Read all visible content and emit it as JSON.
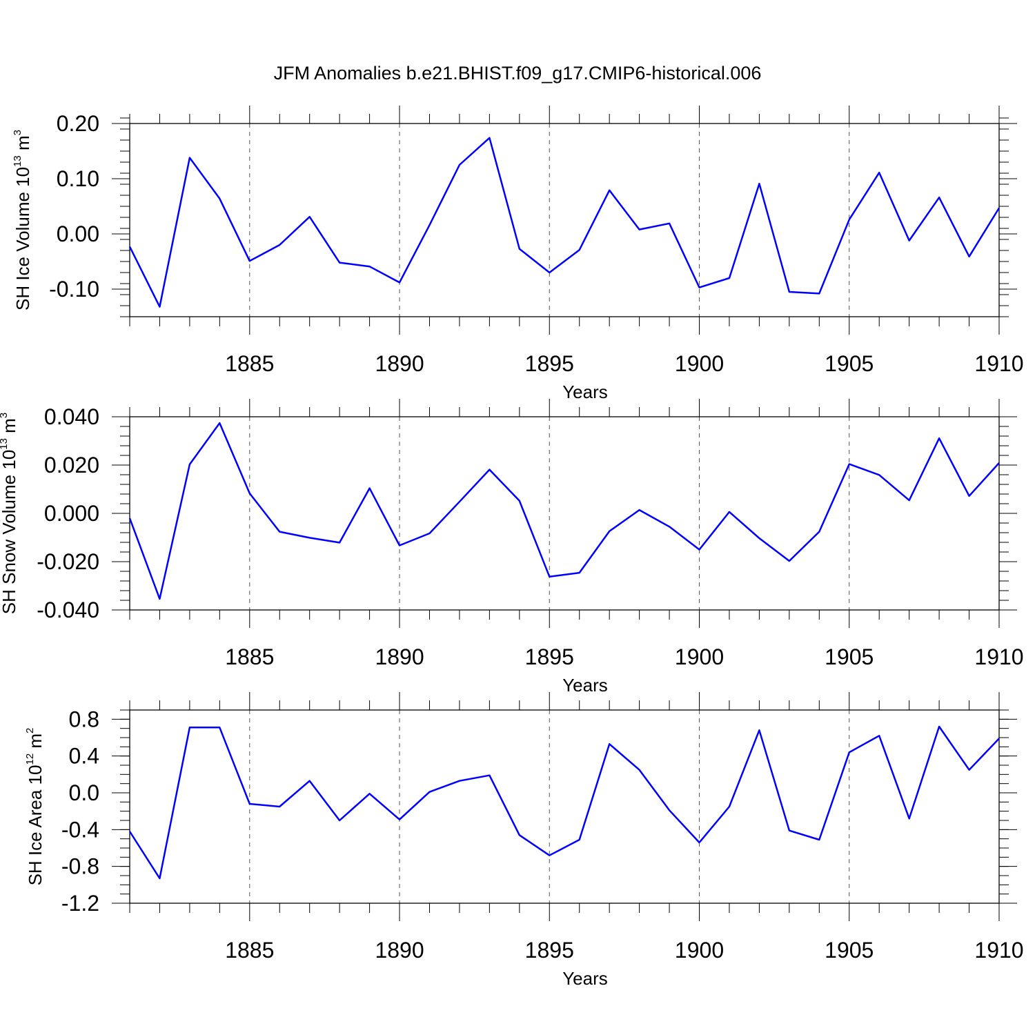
{
  "title": "JFM Anomalies b.e21.BHIST.f09_g17.CMIP6-historical.006",
  "colors": {
    "series": "#0000ff",
    "axis": "#000000",
    "grid": "#555555"
  },
  "chart_data": [
    {
      "type": "line",
      "id": "ice-volume",
      "ylabel": {
        "main": "SH Ice Volume 10",
        "sup": "13",
        "unit": " m",
        "unit_sup": "3"
      },
      "xlabel": "Years",
      "x": [
        1881,
        1882,
        1883,
        1884,
        1885,
        1886,
        1887,
        1888,
        1889,
        1890,
        1891,
        1892,
        1893,
        1894,
        1895,
        1896,
        1897,
        1898,
        1899,
        1900,
        1901,
        1902,
        1903,
        1904,
        1905,
        1906,
        1907,
        1908,
        1909,
        1910
      ],
      "values": [
        -0.023,
        -0.132,
        0.138,
        0.064,
        -0.049,
        -0.02,
        0.031,
        -0.052,
        -0.059,
        -0.088,
        0.016,
        0.125,
        0.174,
        -0.027,
        -0.07,
        -0.029,
        0.079,
        0.008,
        0.019,
        -0.097,
        -0.08,
        0.091,
        -0.105,
        -0.108,
        0.026,
        0.111,
        -0.012,
        0.066,
        -0.041,
        0.047
      ],
      "xlim": [
        1881,
        1910
      ],
      "ylim": [
        -0.15,
        0.2
      ],
      "yticks": [
        -0.1,
        0.0,
        0.1,
        0.2
      ],
      "ytick_labels": [
        "-0.10",
        "0.00",
        "0.10",
        "0.20"
      ],
      "yminor_step": 0.02,
      "xticks": [
        1885,
        1890,
        1895,
        1900,
        1905,
        1910
      ],
      "xtick_labels": [
        "1885",
        "1890",
        "1895",
        "1900",
        "1905",
        "1910"
      ]
    },
    {
      "type": "line",
      "id": "snow-volume",
      "ylabel": {
        "main": "SH Snow Volume 10",
        "sup": "13",
        "unit": " m",
        "unit_sup": "3"
      },
      "xlabel": "Years",
      "x": [
        1881,
        1882,
        1883,
        1884,
        1885,
        1886,
        1887,
        1888,
        1889,
        1890,
        1891,
        1892,
        1893,
        1894,
        1895,
        1896,
        1897,
        1898,
        1899,
        1900,
        1901,
        1902,
        1903,
        1904,
        1905,
        1906,
        1907,
        1908,
        1909,
        1910
      ],
      "values": [
        -0.002,
        -0.0354,
        0.0203,
        0.0374,
        0.0083,
        -0.0076,
        -0.0101,
        -0.0121,
        0.0104,
        -0.0133,
        -0.0083,
        0.0048,
        0.0181,
        0.0052,
        -0.0262,
        -0.0246,
        -0.0074,
        0.0014,
        -0.0055,
        -0.015,
        0.0006,
        -0.0103,
        -0.0197,
        -0.0076,
        0.0204,
        0.0159,
        0.0054,
        0.0311,
        0.0072,
        0.0209
      ],
      "xlim": [
        1881,
        1910
      ],
      "ylim": [
        -0.04,
        0.04
      ],
      "yticks": [
        -0.04,
        -0.02,
        0.0,
        0.02,
        0.04
      ],
      "ytick_labels": [
        "-0.040",
        "-0.020",
        "0.000",
        "0.020",
        "0.040"
      ],
      "yminor_step": 0.004,
      "xticks": [
        1885,
        1890,
        1895,
        1900,
        1905,
        1910
      ],
      "xtick_labels": [
        "1885",
        "1890",
        "1895",
        "1900",
        "1905",
        "1910"
      ]
    },
    {
      "type": "line",
      "id": "ice-area",
      "ylabel": {
        "main": "SH Ice Area 10",
        "sup": "12",
        "unit": " m",
        "unit_sup": "2"
      },
      "xlabel": "Years",
      "x": [
        1881,
        1882,
        1883,
        1884,
        1885,
        1886,
        1887,
        1888,
        1889,
        1890,
        1891,
        1892,
        1893,
        1894,
        1895,
        1896,
        1897,
        1898,
        1899,
        1900,
        1901,
        1902,
        1903,
        1904,
        1905,
        1906,
        1907,
        1908,
        1909,
        1910
      ],
      "values": [
        -0.42,
        -0.93,
        0.71,
        0.71,
        -0.12,
        -0.15,
        0.13,
        -0.3,
        -0.01,
        -0.29,
        0.01,
        0.13,
        0.19,
        -0.46,
        -0.68,
        -0.51,
        0.53,
        0.25,
        -0.19,
        -0.54,
        -0.15,
        0.68,
        -0.41,
        -0.51,
        0.44,
        0.62,
        -0.28,
        0.72,
        0.25,
        0.59
      ],
      "xlim": [
        1881,
        1910
      ],
      "ylim": [
        -1.2,
        0.9
      ],
      "yticks": [
        -1.2,
        -0.8,
        -0.4,
        0.0,
        0.4,
        0.8
      ],
      "ytick_labels": [
        "-1.2",
        "-0.8",
        "-0.4",
        "0.0",
        "0.4",
        "0.8"
      ],
      "yminor_step": 0.1,
      "xticks": [
        1885,
        1890,
        1895,
        1900,
        1905,
        1910
      ],
      "xtick_labels": [
        "1885",
        "1890",
        "1895",
        "1900",
        "1905",
        "1910"
      ]
    }
  ]
}
